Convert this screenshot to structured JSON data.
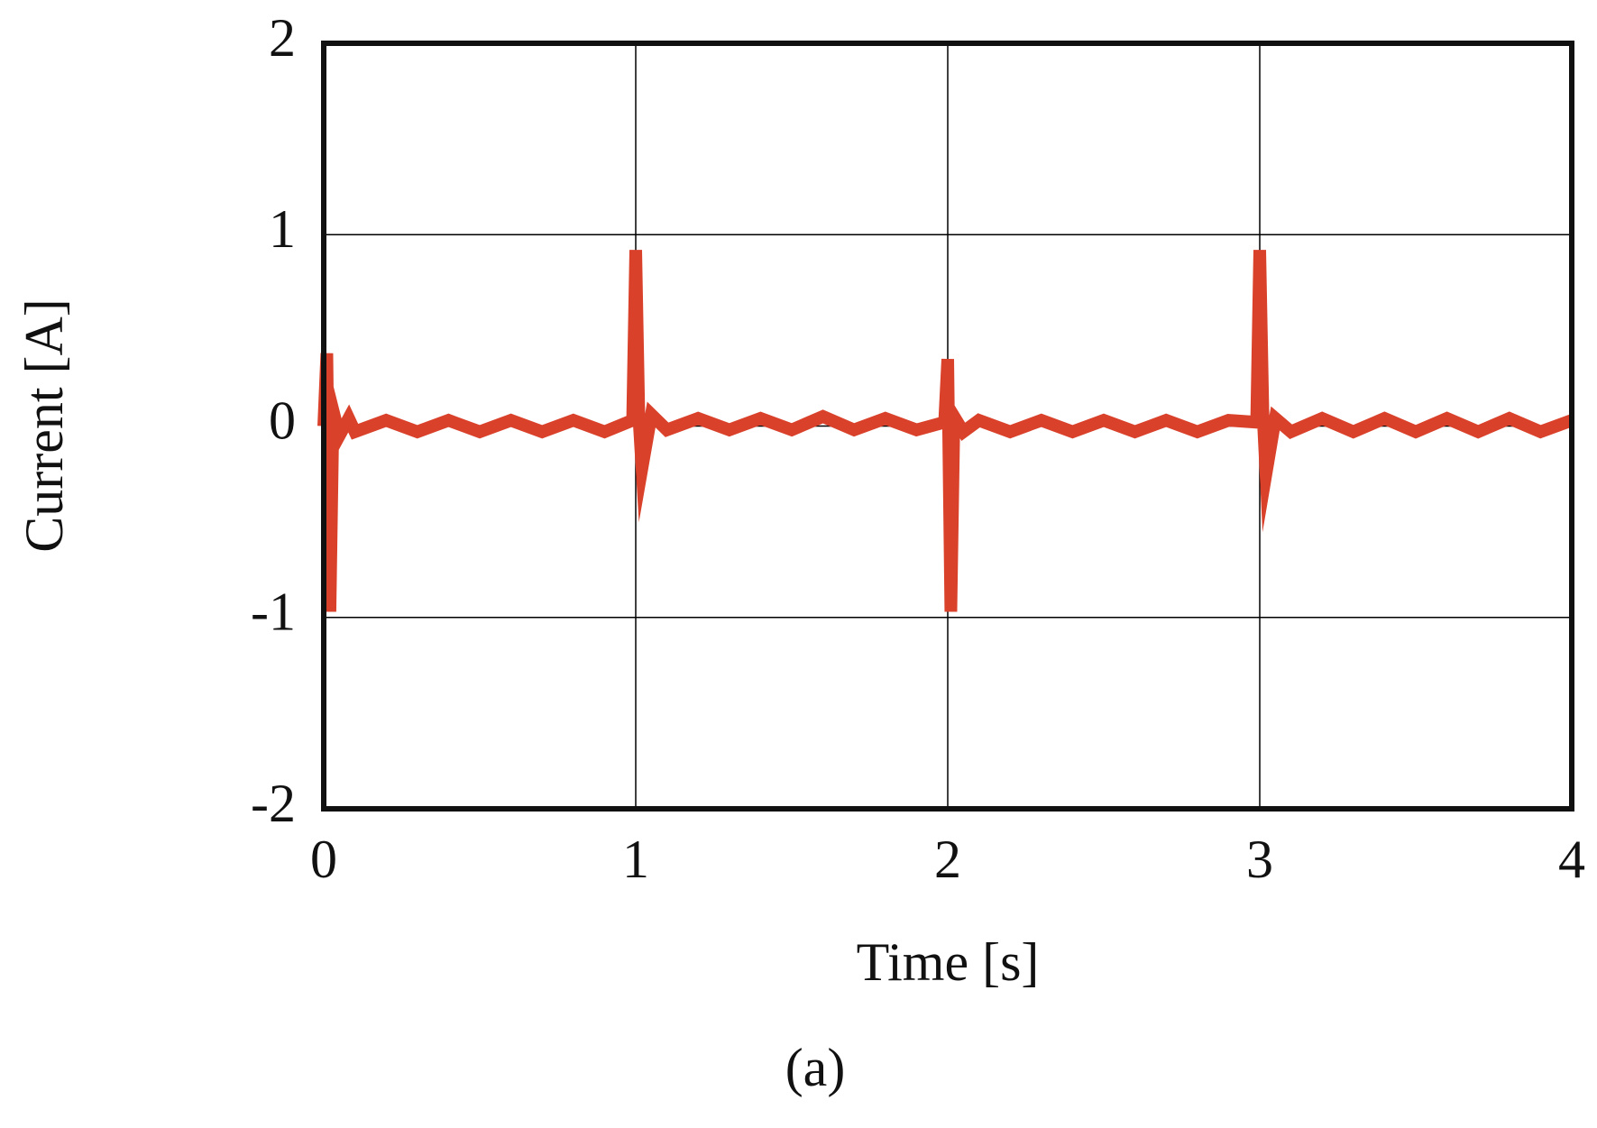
{
  "chart_data": {
    "type": "line",
    "caption": "(a)",
    "xlabel": "Time [s]",
    "ylabel": "Current [A]",
    "xlim": [
      0,
      4
    ],
    "xticks": [
      0,
      1,
      2,
      3,
      4
    ],
    "ylim": [
      -2,
      2
    ],
    "yticks": [
      -2,
      -1,
      0,
      1,
      2
    ],
    "grid": true,
    "series": [
      {
        "color": "#d9412b",
        "x": [
          0,
          0.01,
          0.02,
          0.03,
          0.05,
          0.08,
          0.1,
          0.2,
          0.3,
          0.4,
          0.5,
          0.6,
          0.7,
          0.8,
          0.9,
          0.99,
          1.0,
          1.01,
          1.02,
          1.05,
          1.1,
          1.2,
          1.3,
          1.4,
          1.5,
          1.6,
          1.7,
          1.8,
          1.9,
          1.99,
          2.0,
          2.01,
          2.02,
          2.05,
          2.1,
          2.2,
          2.3,
          2.4,
          2.5,
          2.6,
          2.7,
          2.8,
          2.9,
          2.99,
          3.0,
          3.01,
          3.02,
          3.05,
          3.1,
          3.2,
          3.3,
          3.4,
          3.5,
          3.6,
          3.7,
          3.8,
          3.9,
          4.0
        ],
        "values": [
          0,
          0.38,
          -0.97,
          0.08,
          -0.05,
          0.04,
          -0.03,
          0.03,
          -0.03,
          0.03,
          -0.03,
          0.03,
          -0.03,
          0.03,
          -0.03,
          0.03,
          0.92,
          0.05,
          -0.22,
          0.06,
          -0.02,
          0.04,
          -0.02,
          0.04,
          -0.02,
          0.05,
          -0.02,
          0.04,
          -0.02,
          0.02,
          0.35,
          -0.97,
          0.05,
          -0.03,
          0.03,
          -0.03,
          0.03,
          -0.03,
          0.03,
          -0.03,
          0.03,
          -0.03,
          0.03,
          0.02,
          0.92,
          0.08,
          -0.25,
          0.04,
          -0.03,
          0.04,
          -0.03,
          0.04,
          -0.03,
          0.04,
          -0.03,
          0.04,
          -0.03,
          0.03
        ]
      }
    ]
  }
}
